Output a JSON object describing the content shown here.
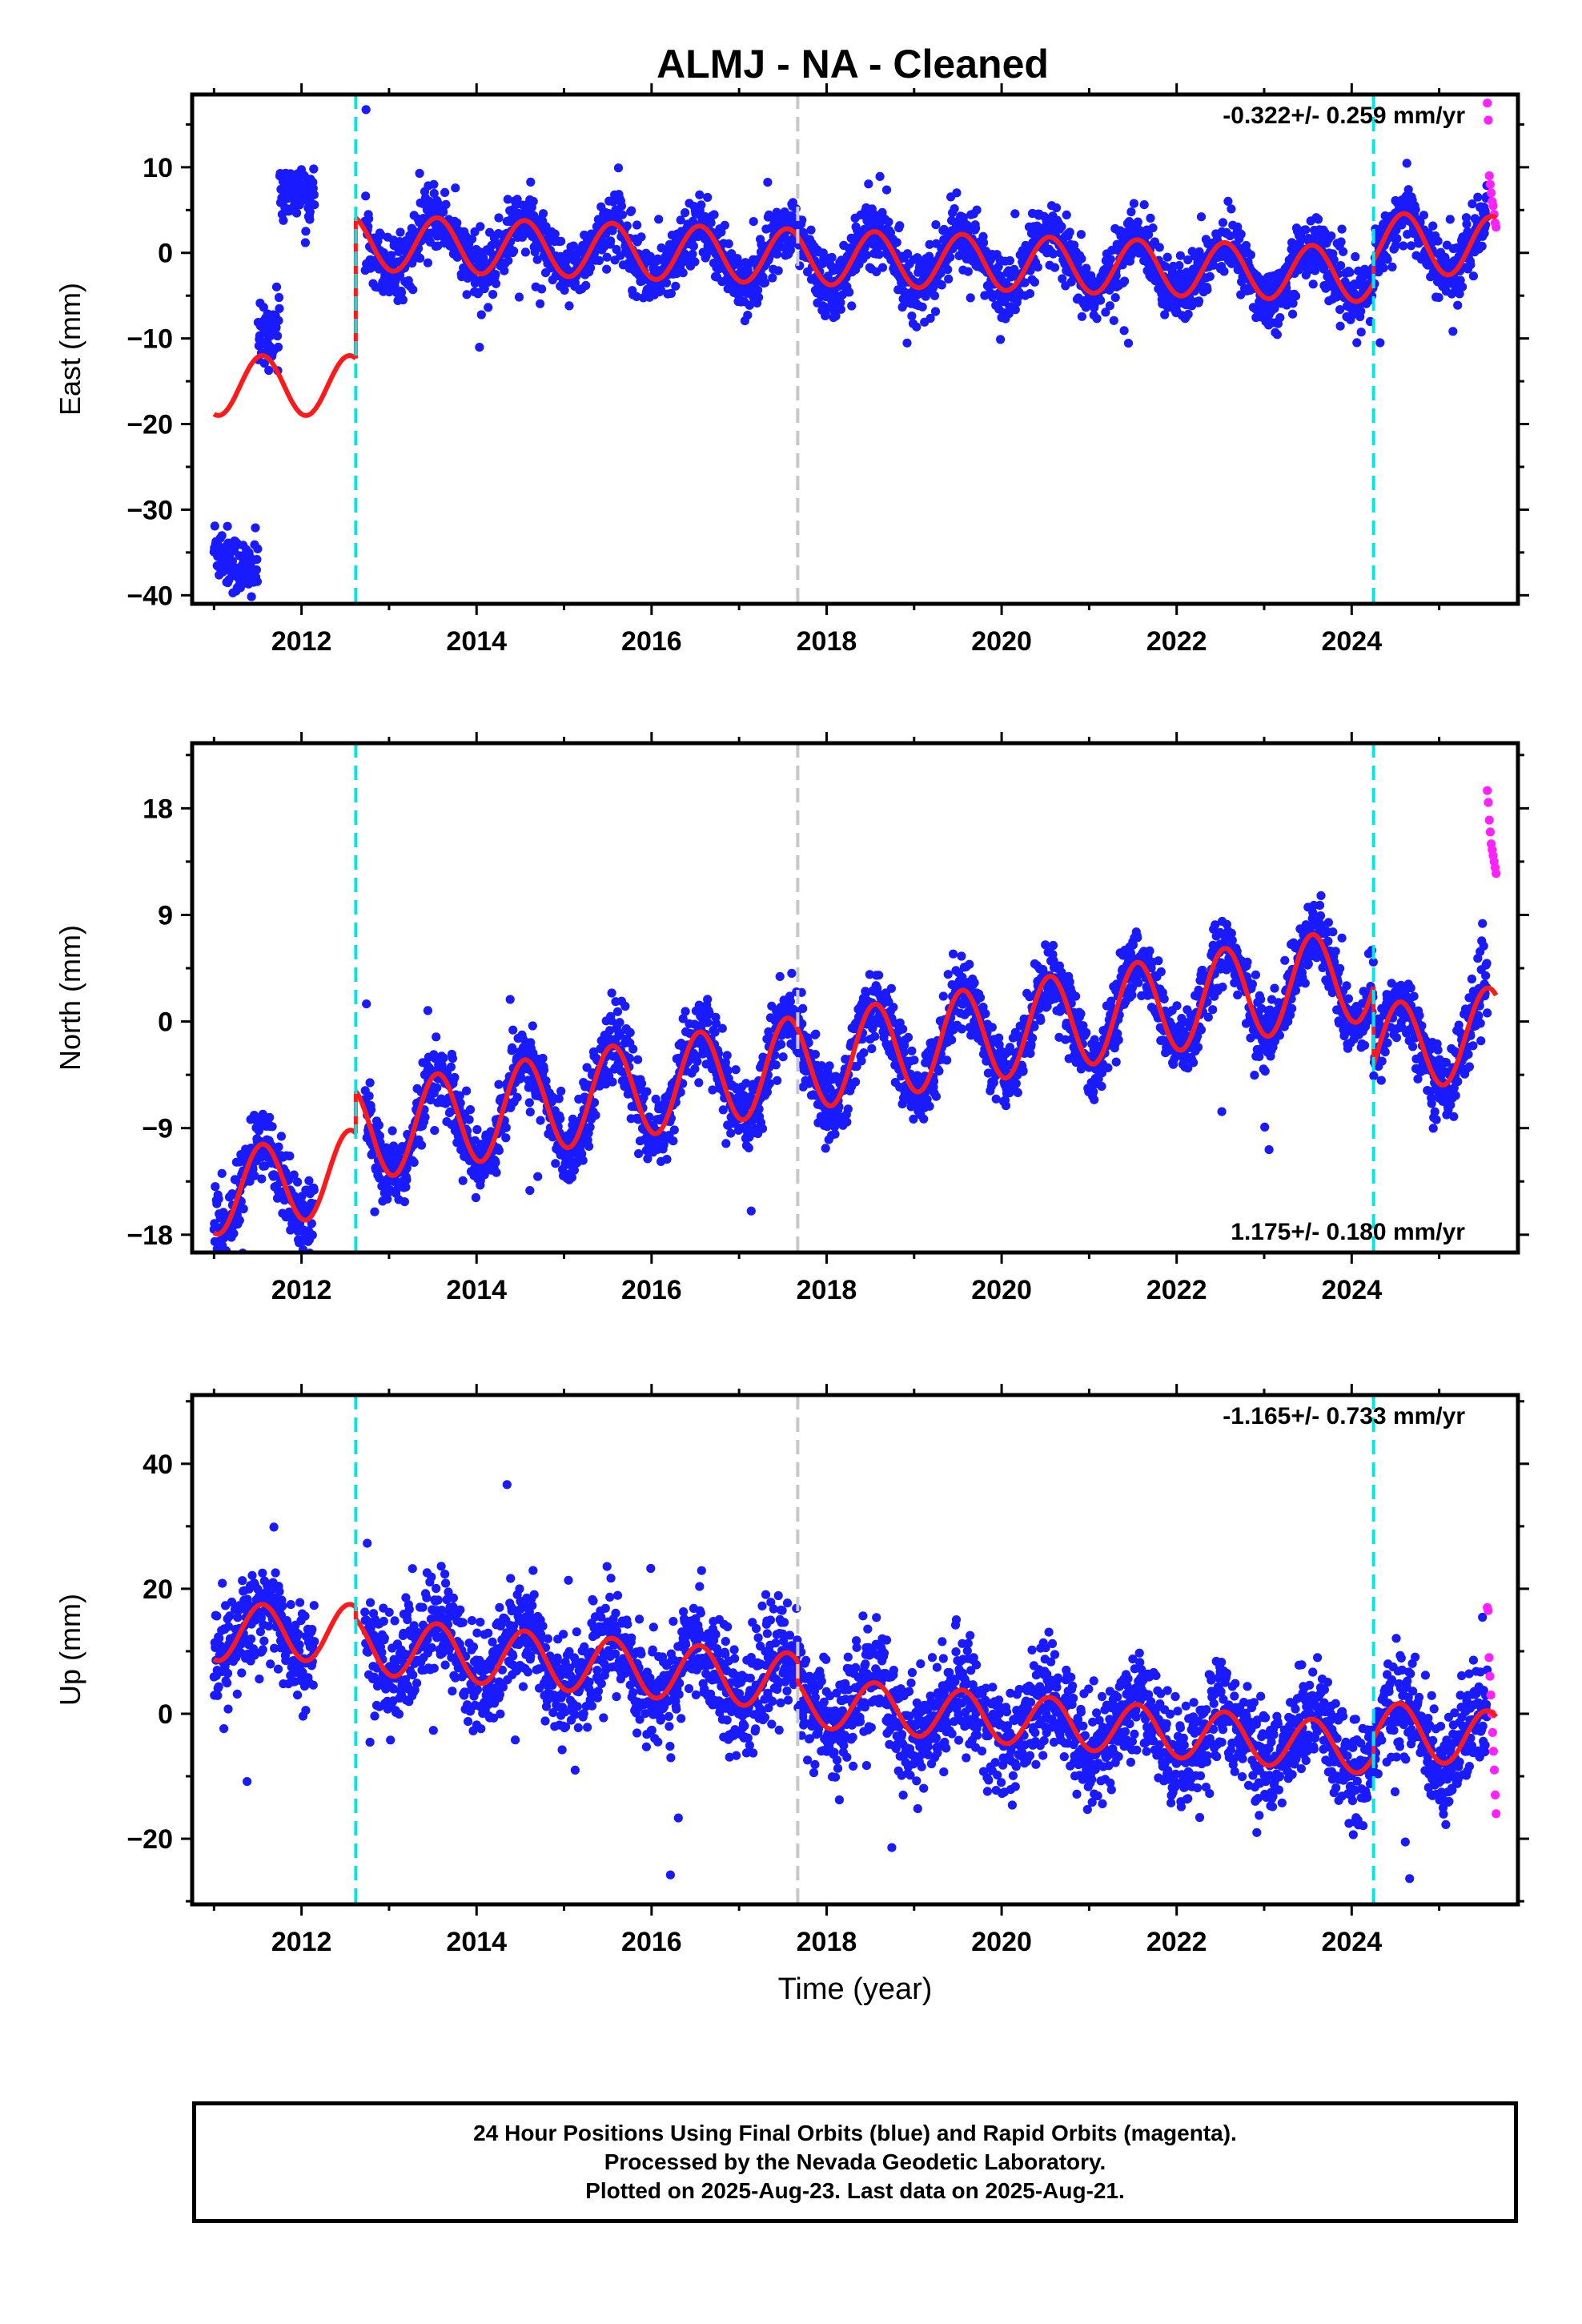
{
  "title": "ALMJ  - NA - Cleaned",
  "colors": {
    "final_orbits": "#1a1aff",
    "rapid_orbits": "#ff22ff",
    "model_fit": "#ff1a1a",
    "equipment_change": "#00e6e6",
    "earthquake": "#c8c8c8",
    "frame": "#000000"
  },
  "chart_data": [
    {
      "type": "scatter",
      "component": "east",
      "ylabel": "East (mm)",
      "xlabel": "",
      "xlim": [
        2010.75,
        2025.9
      ],
      "ylim": [
        -41,
        18.5
      ],
      "xticks": [
        2012,
        2014,
        2016,
        2018,
        2020,
        2022,
        2024
      ],
      "yticks": [
        10,
        0,
        -10,
        -20,
        -30,
        -40
      ],
      "rate_label": "-0.322+/- 0.259 mm/yr",
      "rate_label_pos": "top-right",
      "grid": false,
      "vlines": [
        {
          "x": 2012.62,
          "kind": "equipment"
        },
        {
          "x": 2017.67,
          "kind": "earthquake"
        },
        {
          "x": 2024.25,
          "kind": "equipment"
        }
      ],
      "model_fit": {
        "segments": [
          {
            "t0": 2011.0,
            "t1": 2012.62,
            "offset": -15.5,
            "trend": 0.0,
            "amp": 3.5,
            "phase": 2011.55
          },
          {
            "t0": 2012.62,
            "t1": 2024.25,
            "offset": 1.2,
            "trend": -0.322,
            "amp": 3.2,
            "phase": 2013.55
          },
          {
            "t0": 2024.25,
            "t1": 2025.65,
            "offset": 1.2,
            "trend": -0.322,
            "amp": 3.5,
            "phase": 2024.6
          }
        ]
      },
      "rapid_orbits": {
        "t0": 2025.55,
        "t1": 2025.65,
        "values": [
          17.5,
          15.5,
          9.0,
          8.0,
          7.0,
          6.0,
          5.5,
          4.5,
          3.5,
          3.0
        ]
      }
    },
    {
      "type": "scatter",
      "component": "north",
      "ylabel": "North (mm)",
      "xlabel": "",
      "xlim": [
        2010.75,
        2025.9
      ],
      "ylim": [
        -19.5,
        23.5
      ],
      "xticks": [
        2012,
        2014,
        2016,
        2018,
        2020,
        2022,
        2024
      ],
      "yticks": [
        18,
        9,
        0,
        -9,
        -18
      ],
      "rate_label": "1.175+/- 0.180 mm/yr",
      "rate_label_pos": "bottom-right",
      "grid": false,
      "vlines": [
        {
          "x": 2012.62,
          "kind": "equipment"
        },
        {
          "x": 2017.67,
          "kind": "earthquake"
        },
        {
          "x": 2024.25,
          "kind": "equipment"
        }
      ],
      "model_fit": {
        "segments": [
          {
            "t0": 2011.0,
            "t1": 2012.62,
            "offset": -14.5,
            "trend": 1.175,
            "amp": 3.5,
            "phase": 2011.55
          },
          {
            "t0": 2012.62,
            "t1": 2024.25,
            "offset": -9.5,
            "trend": 1.175,
            "amp": 4.0,
            "phase": 2013.55
          },
          {
            "t0": 2024.25,
            "t1": 2025.65,
            "offset": -2.5,
            "trend": 1.175,
            "amp": 3.8,
            "phase": 2024.55
          }
        ]
      },
      "rapid_orbits": {
        "t0": 2025.55,
        "t1": 2025.65,
        "values": [
          19.5,
          18.5,
          17.0,
          16.0,
          15.0,
          14.5,
          14.0,
          13.5,
          13.0,
          12.5
        ]
      }
    },
    {
      "type": "scatter",
      "component": "up",
      "ylabel": "Up (mm)",
      "xlabel": "Time (year)",
      "xlim": [
        2010.75,
        2025.9
      ],
      "ylim": [
        -30.5,
        51
      ],
      "xticks": [
        2012,
        2014,
        2016,
        2018,
        2020,
        2022,
        2024
      ],
      "yticks": [
        40,
        20,
        0,
        -20
      ],
      "rate_label": "-1.165+/- 0.733 mm/yr",
      "rate_label_pos": "top-right",
      "grid": false,
      "vlines": [
        {
          "x": 2012.62,
          "kind": "equipment"
        },
        {
          "x": 2017.67,
          "kind": "earthquake"
        },
        {
          "x": 2024.25,
          "kind": "equipment"
        }
      ],
      "model_fit": {
        "segments": [
          {
            "t0": 2011.0,
            "t1": 2012.62,
            "offset": 13.0,
            "trend": 0.0,
            "amp": 4.5,
            "phase": 2011.55
          },
          {
            "t0": 2012.62,
            "t1": 2017.67,
            "offset": 11.0,
            "trend": -1.165,
            "amp": 4.5,
            "phase": 2013.55
          },
          {
            "t0": 2017.67,
            "t1": 2024.25,
            "offset": 2.0,
            "trend": -1.165,
            "amp": 4.0,
            "phase": 2018.55
          },
          {
            "t0": 2024.25,
            "t1": 2025.65,
            "offset": -2.5,
            "trend": -1.165,
            "amp": 4.5,
            "phase": 2024.55
          }
        ]
      },
      "rapid_orbits": {
        "t0": 2025.55,
        "t1": 2025.65,
        "values": [
          17.0,
          16.5,
          9.0,
          6.0,
          3.0,
          0.0,
          -3.0,
          -6.0,
          -9.0,
          -13.0,
          -16.0
        ]
      }
    }
  ],
  "caption": {
    "line1": "24 Hour Positions Using Final Orbits (blue) and Rapid Orbits (magenta).",
    "line2": "Processed by the Nevada Geodetic Laboratory.",
    "line3": "Plotted on 2025-Aug-23. Last data on 2025-Aug-21."
  }
}
